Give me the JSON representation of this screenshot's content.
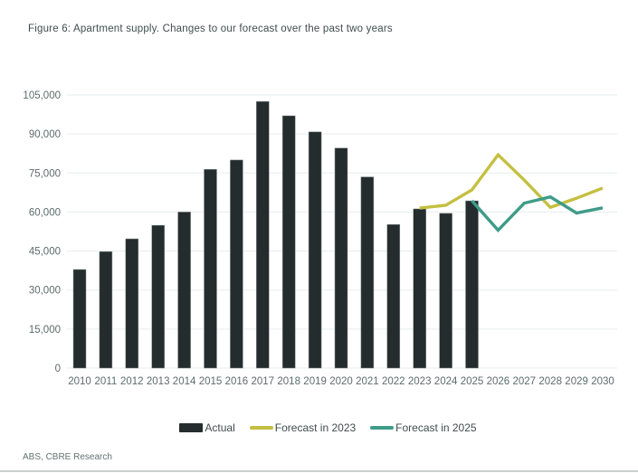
{
  "title": "Figure 6: Apartment supply. Changes to our forecast over the past two years",
  "source": "ABS, CBRE Research",
  "colors": {
    "bar": "#242c2e",
    "bar_outline": "#878f90",
    "forecast_2023": "#c4bf41",
    "forecast_2025": "#3e9c88",
    "grid": "#e7edec",
    "axis_text": "#5d6c6b",
    "title_text": "#3f4d4c",
    "divider": "#c9d0cf"
  },
  "chart_data": {
    "type": "bar",
    "title": "Figure 6: Apartment supply. Changes to our forecast over the past two years",
    "xlabel": "",
    "ylabel": "",
    "ylim": [
      0,
      105000
    ],
    "grid": true,
    "legend_position": "bottom",
    "categories": [
      "2010",
      "2011",
      "2012",
      "2013",
      "2014",
      "2015",
      "2016",
      "2017",
      "2018",
      "2019",
      "2020",
      "2021",
      "2022",
      "2023",
      "2024",
      "2025",
      "2026",
      "2027",
      "2028",
      "2029",
      "2030"
    ],
    "y_ticks": [
      {
        "value": 0,
        "label": "0"
      },
      {
        "value": 15000,
        "label": "15,000"
      },
      {
        "value": 30000,
        "label": "30,000"
      },
      {
        "value": 45000,
        "label": "45,000"
      },
      {
        "value": 60000,
        "label": "60,000"
      },
      {
        "value": 75000,
        "label": "75,000"
      },
      {
        "value": 90000,
        "label": "90,000"
      },
      {
        "value": 105000,
        "label": "105,000"
      }
    ],
    "series": [
      {
        "name": "Actual",
        "type": "bar",
        "color": "#242c2e",
        "values": [
          37900,
          44800,
          49700,
          54900,
          60000,
          76400,
          80000,
          102500,
          97000,
          90800,
          84600,
          73500,
          55200,
          61200,
          59500,
          64300,
          null,
          null,
          null,
          null,
          null
        ]
      },
      {
        "name": "Forecast in 2023",
        "type": "line",
        "color": "#c4bf41",
        "values": [
          null,
          null,
          null,
          null,
          null,
          null,
          null,
          null,
          null,
          null,
          null,
          null,
          null,
          61500,
          62600,
          68500,
          82000,
          72300,
          61800,
          65300,
          69200
        ]
      },
      {
        "name": "Forecast in 2025",
        "type": "line",
        "color": "#3e9c88",
        "values": [
          null,
          null,
          null,
          null,
          null,
          null,
          null,
          null,
          null,
          null,
          null,
          null,
          null,
          null,
          null,
          64300,
          53000,
          63400,
          65800,
          59600,
          61600
        ]
      }
    ]
  }
}
